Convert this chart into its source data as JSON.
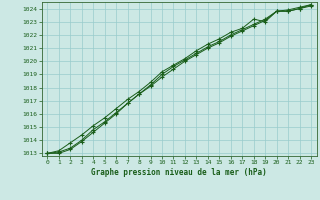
{
  "title": "Graphe pression niveau de la mer (hPa)",
  "background_color": "#cce8e4",
  "grid_color": "#99cccc",
  "line_color": "#1a5e1a",
  "text_color": "#1a5e1a",
  "spine_color": "#336633",
  "xlim": [
    -0.5,
    23.5
  ],
  "ylim": [
    1012.8,
    1024.5
  ],
  "yticks": [
    1013,
    1014,
    1015,
    1016,
    1017,
    1018,
    1019,
    1020,
    1021,
    1022,
    1023,
    1024
  ],
  "xticks": [
    0,
    1,
    2,
    3,
    4,
    5,
    6,
    7,
    8,
    9,
    10,
    11,
    12,
    13,
    14,
    15,
    16,
    17,
    18,
    19,
    20,
    21,
    22,
    23
  ],
  "line1_x": [
    0,
    1,
    2,
    3,
    4,
    5,
    6,
    7,
    8,
    9,
    10,
    11,
    12,
    13,
    14,
    15,
    16,
    17,
    18,
    19,
    20,
    21,
    22,
    23
  ],
  "line1_y": [
    1013.0,
    1013.1,
    1013.4,
    1014.0,
    1014.8,
    1015.4,
    1016.1,
    1016.8,
    1017.5,
    1018.1,
    1018.8,
    1019.4,
    1020.0,
    1020.5,
    1021.0,
    1021.4,
    1021.9,
    1022.3,
    1022.7,
    1023.1,
    1023.8,
    1023.8,
    1024.0,
    1024.2
  ],
  "line2_x": [
    0,
    1,
    2,
    3,
    4,
    5,
    6,
    7,
    8,
    9,
    10,
    11,
    12,
    13,
    14,
    15,
    16,
    17,
    18,
    19,
    20,
    21,
    22,
    23
  ],
  "line2_y": [
    1013.0,
    1013.0,
    1013.3,
    1013.9,
    1014.6,
    1015.3,
    1016.0,
    1016.8,
    1017.5,
    1018.2,
    1019.0,
    1019.6,
    1020.1,
    1020.6,
    1021.1,
    1021.5,
    1022.0,
    1022.4,
    1022.8,
    1023.2,
    1023.8,
    1023.9,
    1024.1,
    1024.3
  ],
  "line3_x": [
    0,
    1,
    2,
    3,
    4,
    5,
    6,
    7,
    8,
    9,
    10,
    11,
    12,
    13,
    14,
    15,
    16,
    17,
    18,
    19,
    20,
    21,
    22,
    23
  ],
  "line3_y": [
    1013.0,
    1013.2,
    1013.8,
    1014.4,
    1015.1,
    1015.7,
    1016.4,
    1017.1,
    1017.7,
    1018.4,
    1019.2,
    1019.7,
    1020.2,
    1020.8,
    1021.3,
    1021.7,
    1022.2,
    1022.5,
    1023.2,
    1023.0,
    1023.8,
    1023.8,
    1024.0,
    1024.3
  ]
}
